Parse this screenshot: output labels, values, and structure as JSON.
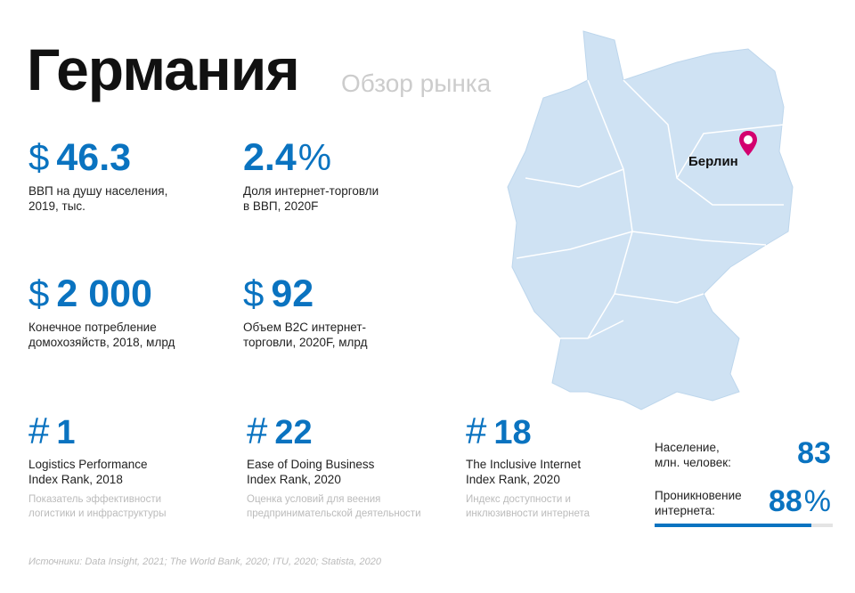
{
  "header": {
    "title": "Германия",
    "subtitle": "Обзор рынка"
  },
  "stats": [
    {
      "prefix": "$",
      "value": "46.3",
      "label": [
        "ВВП на душу населения,",
        "2019, тыс."
      ]
    },
    {
      "value": "2.4",
      "suffix": "%",
      "label": [
        "Доля интернет-торговли",
        "в ВВП, 2020F"
      ]
    },
    {
      "prefix": "$",
      "value": "2 000",
      "label": [
        "Конечное потребление",
        "домохозяйств, 2018, млрд"
      ]
    },
    {
      "prefix": "$",
      "value": "92",
      "label": [
        "Объем B2C интернет-",
        "торговли, 2020F, млрд"
      ]
    }
  ],
  "ranks": [
    {
      "prefix": "#",
      "value": "1",
      "label": [
        "Logistics Performance",
        "Index Rank, 2018"
      ],
      "note": [
        "Показатель эффективности",
        "логистики и инфраструктуры"
      ]
    },
    {
      "prefix": "#",
      "value": "22",
      "label": [
        "Ease of Doing Business",
        "Index Rank, 2020"
      ],
      "note": [
        "Оценка условий для веения",
        "предпринимательской деятельности"
      ]
    },
    {
      "prefix": "#",
      "value": "18",
      "label": [
        "The Inclusive Internet",
        "Index Rank, 2020"
      ],
      "note": [
        "Индекс доступности и",
        "инклюзивности интернета"
      ]
    }
  ],
  "population": {
    "label": [
      "Население,",
      "млн. человек:"
    ],
    "value": "83"
  },
  "internet": {
    "label": [
      "Проникновение",
      "интернета:"
    ],
    "value": 88,
    "suffix": "%"
  },
  "map": {
    "city": "Берлин"
  },
  "source": "Источники: Data Insight, 2021; The World Bank, 2020; ITU, 2020; Statista, 2020"
}
